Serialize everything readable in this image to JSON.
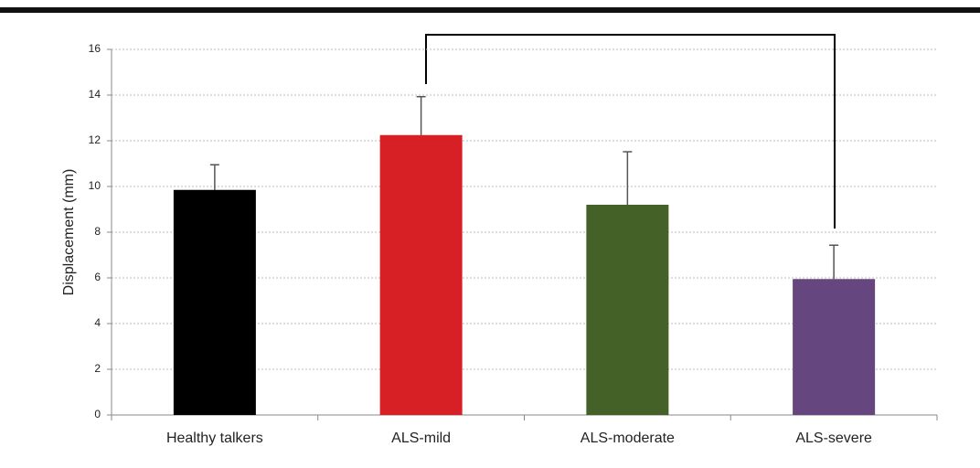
{
  "chart_data": {
    "type": "bar",
    "y_label": "Displacement (mm)",
    "categories": [
      "Healthy talkers",
      "ALS-mild",
      "ALS-moderate",
      "ALS-severe"
    ],
    "values": [
      9.85,
      12.25,
      9.2,
      5.95
    ],
    "errors": [
      1.1,
      1.68,
      2.32,
      1.48
    ],
    "colors": [
      "#000000",
      "#d71f26",
      "#446128",
      "#66467f"
    ],
    "ylim": [
      0,
      16
    ],
    "yticks": [
      0,
      2,
      4,
      6,
      8,
      10,
      12,
      14,
      16
    ],
    "grid": true
  }
}
